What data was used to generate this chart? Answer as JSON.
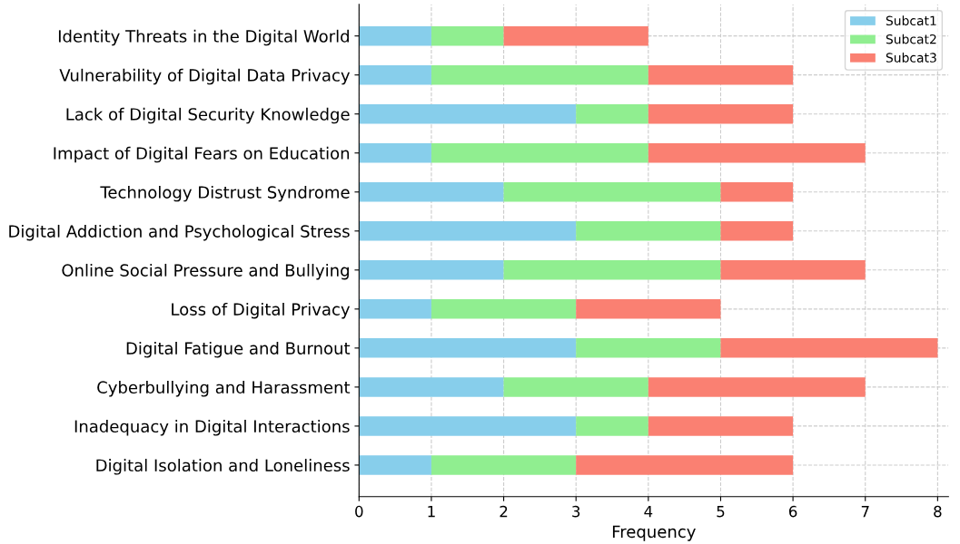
{
  "chart_data": {
    "type": "bar",
    "orientation": "horizontal",
    "stacked": true,
    "xlabel": "Frequency",
    "categories": [
      "Identity Threats in the Digital World",
      "Vulnerability of Digital Data Privacy",
      "Lack of Digital Security Knowledge",
      "Impact of Digital Fears on Education",
      "Technology Distrust Syndrome",
      "Digital Addiction and Psychological Stress",
      "Online Social Pressure and Bullying",
      "Loss of Digital Privacy",
      "Digital Fatigue and Burnout",
      "Cyberbullying and Harassment",
      "Inadequacy in Digital Interactions",
      "Digital Isolation and Loneliness"
    ],
    "series": [
      {
        "name": "Subcat1",
        "color": "#87ceeb",
        "values": [
          1,
          1,
          3,
          1,
          2,
          3,
          2,
          1,
          3,
          2,
          3,
          1
        ]
      },
      {
        "name": "Subcat2",
        "color": "#90ee90",
        "values": [
          1,
          3,
          1,
          3,
          3,
          2,
          3,
          2,
          2,
          2,
          1,
          2
        ]
      },
      {
        "name": "Subcat3",
        "color": "#fa8072",
        "values": [
          2,
          2,
          2,
          3,
          1,
          1,
          2,
          2,
          3,
          3,
          2,
          3
        ]
      }
    ],
    "xlim": [
      0,
      8.15
    ],
    "xticks": [
      0,
      1,
      2,
      3,
      4,
      5,
      6,
      7,
      8
    ],
    "grid": true,
    "line_style": "dashed",
    "legend": "top right"
  }
}
